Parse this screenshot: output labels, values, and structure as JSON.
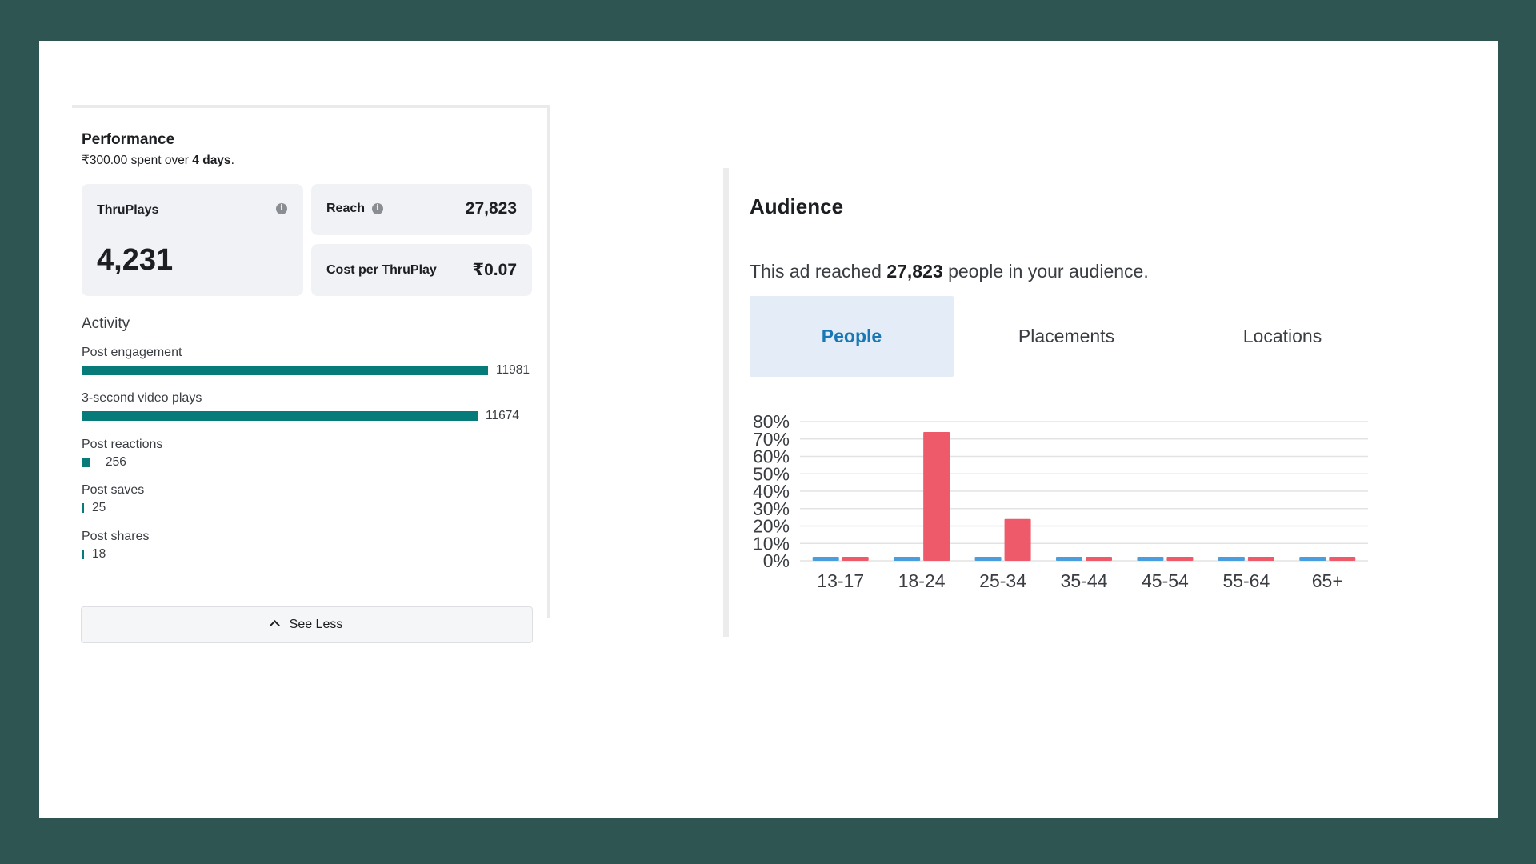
{
  "performance": {
    "title": "Performance",
    "spent_amount": "₹300.00",
    "spent_mid": "spent over",
    "spent_days": "4 days",
    "spent_end": ".",
    "thruplays_label": "ThruPlays",
    "thruplays_value": "4,231",
    "reach_label": "Reach",
    "reach_value": "27,823",
    "cost_label": "Cost per ThruPlay",
    "cost_value": "₹0.07",
    "info_glyph": "i",
    "activity_title": "Activity",
    "activity": [
      {
        "label": "Post engagement",
        "value": "11981",
        "count": 11981
      },
      {
        "label": "3-second video plays",
        "value": "11674",
        "count": 11674
      },
      {
        "label": "Post reactions",
        "value": "256",
        "count": 256
      },
      {
        "label": "Post saves",
        "value": "25",
        "count": 25
      },
      {
        "label": "Post shares",
        "value": "18",
        "count": 18
      }
    ],
    "see_less_label": "See Less"
  },
  "audience": {
    "title": "Audience",
    "reach_text_pre": "This ad reached",
    "reach_count": "27,823",
    "reach_text_post": "people in your audience.",
    "tabs": [
      {
        "label": "People",
        "selected": true
      },
      {
        "label": "Placements",
        "selected": false
      },
      {
        "label": "Locations",
        "selected": false
      }
    ]
  },
  "colors": {
    "bar_teal": "#077b7a",
    "series_blue": "#4a9ede",
    "series_red": "#ef5a6b",
    "tab_selected_bg": "#e4edf7",
    "tab_selected_text": "#1877b5",
    "frame_bg": "#2f5553"
  },
  "chart_data": {
    "type": "bar",
    "categories": [
      "13-17",
      "18-24",
      "25-34",
      "35-44",
      "45-54",
      "55-64",
      "65+"
    ],
    "series": [
      {
        "color": "#4a9ede",
        "values": [
          0.5,
          0.5,
          0.5,
          0.5,
          0.5,
          0.5,
          0.5
        ]
      },
      {
        "color": "#ef5a6b",
        "values": [
          0.5,
          74,
          24,
          0.5,
          0.5,
          0.5,
          0.5
        ]
      }
    ],
    "yticks": [
      "0%",
      "10%",
      "20%",
      "30%",
      "40%",
      "50%",
      "60%",
      "70%",
      "80%"
    ],
    "ylim": [
      0,
      80
    ],
    "grid": true,
    "xlabel": "",
    "ylabel": ""
  }
}
